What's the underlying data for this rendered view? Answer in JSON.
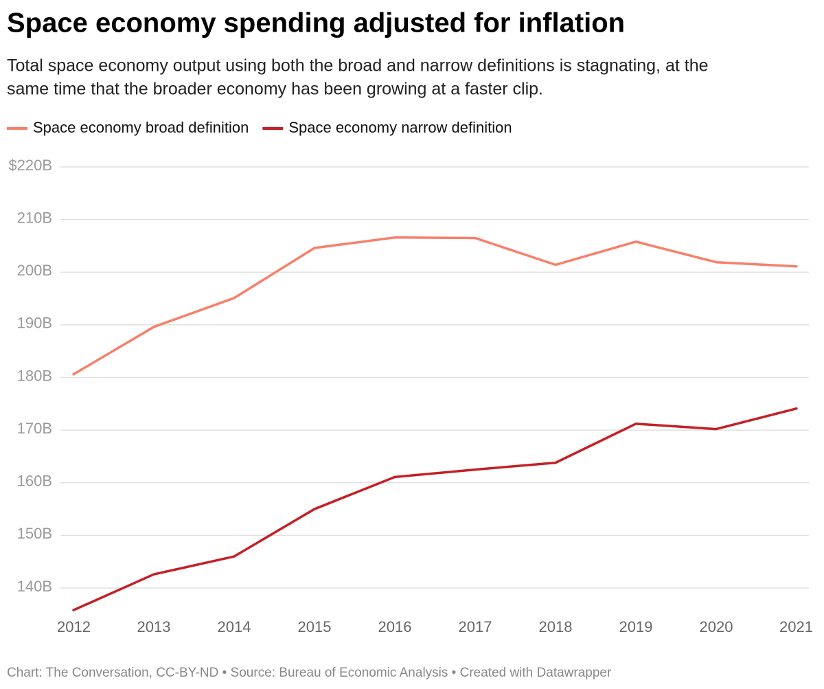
{
  "chart_data": {
    "type": "line",
    "title": "Space economy spending adjusted for inflation",
    "subtitle": [
      "Total space economy output using both the broad and narrow definitions is stagnating, at the",
      "same time that the broader economy has been growing at a faster clip."
    ],
    "x": [
      2012,
      2013,
      2014,
      2015,
      2016,
      2017,
      2018,
      2019,
      2020,
      2021
    ],
    "series": [
      {
        "name": "Space economy broad definition",
        "color": "#f7806a",
        "values": [
          180.6,
          189.6,
          195.1,
          204.6,
          206.6,
          206.5,
          201.4,
          205.8,
          201.9,
          201.1
        ]
      },
      {
        "name": "Space economy narrow definition",
        "color": "#c42026",
        "values": [
          135.8,
          142.6,
          146.0,
          155.0,
          161.1,
          162.5,
          163.8,
          171.2,
          170.2,
          174.1
        ]
      }
    ],
    "xlim": [
      2012,
      2021
    ],
    "xticks": [
      2012,
      2013,
      2014,
      2015,
      2016,
      2017,
      2018,
      2019,
      2020,
      2021
    ],
    "ylim": [
      140,
      220
    ],
    "yticks": [
      {
        "value": 140,
        "label": "140B"
      },
      {
        "value": 150,
        "label": "150B"
      },
      {
        "value": 160,
        "label": "160B"
      },
      {
        "value": 170,
        "label": "170B"
      },
      {
        "value": 180,
        "label": "180B"
      },
      {
        "value": 190,
        "label": "190B"
      },
      {
        "value": 200,
        "label": "200B"
      },
      {
        "value": 210,
        "label": "210B"
      },
      {
        "value": 220,
        "label": "$220B"
      }
    ],
    "grid": true,
    "legend": "top",
    "footer": "Chart: The Conversation, CC-BY-ND • Source: Bureau of Economic Analysis • Created with Datawrapper"
  }
}
